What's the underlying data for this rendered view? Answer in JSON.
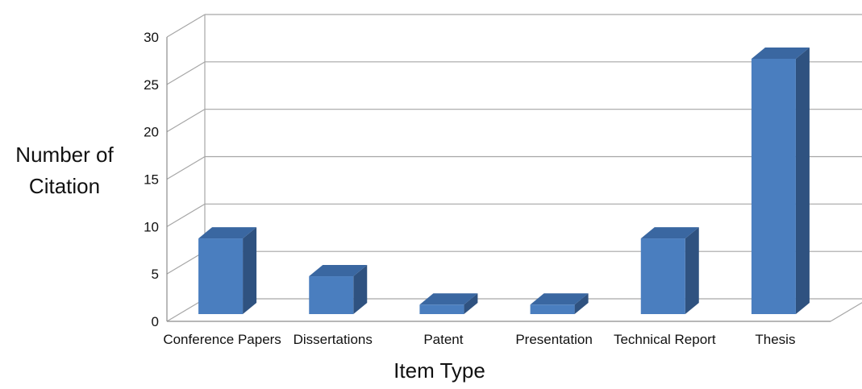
{
  "chart_data": {
    "type": "bar",
    "title": "",
    "xlabel": "Item Type",
    "ylabel_lines": [
      "Number of",
      "Citation"
    ],
    "categories": [
      "Conference Papers",
      "Dissertations",
      "Patent",
      "Presentation",
      "Technical Report",
      "Thesis"
    ],
    "values": [
      8,
      4,
      1,
      1,
      8,
      27
    ],
    "ylim": [
      0,
      30
    ],
    "yticks": [
      0,
      5,
      10,
      15,
      20,
      25,
      30
    ],
    "grid": true,
    "style": "3d-column",
    "colors": {
      "bar_front": "#4a7ebf",
      "bar_top": "#3a67a1",
      "bar_side": "#2f5280",
      "grid": "#a6a6a6",
      "axis": "#8c8c8c",
      "text": "#111111"
    }
  }
}
